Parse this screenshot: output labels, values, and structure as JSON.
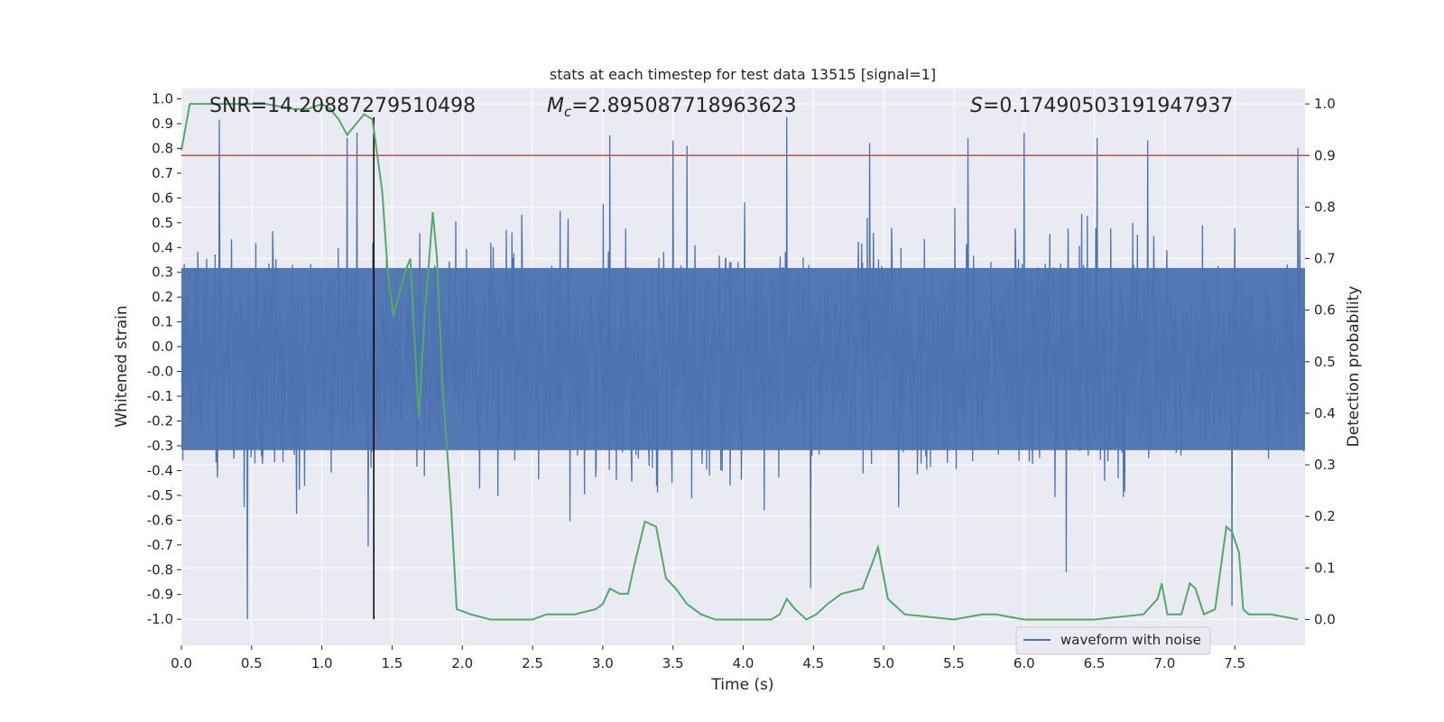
{
  "chart_data": {
    "type": "line",
    "title": "stats at each timestep for test data 13515 [signal=1]",
    "xlabel": "Time (s)",
    "ylabel": "Whitened strain",
    "y2label": "Detection probability",
    "xlim": [
      0.0,
      8.0
    ],
    "ylim": [
      -1.1,
      1.04
    ],
    "y2lim": [
      -0.05,
      1.03
    ],
    "xticks": [
      "0.0",
      "0.5",
      "1.0",
      "1.5",
      "2.0",
      "2.5",
      "3.0",
      "3.5",
      "4.0",
      "4.5",
      "5.0",
      "5.5",
      "6.0",
      "6.5",
      "7.0",
      "7.5"
    ],
    "yticks": [
      "1.0",
      "0.9",
      "0.8",
      "0.7",
      "0.6",
      "0.5",
      "0.4",
      "0.3",
      "0.2",
      "0.1",
      "0.0",
      "-0.0",
      "-0.1",
      "-0.2",
      "-0.3",
      "-0.4",
      "-0.5",
      "-0.6",
      "-0.7",
      "-0.8",
      "-0.9",
      "-1.0"
    ],
    "y2ticks": [
      "1.0",
      "0.9",
      "0.8",
      "0.7",
      "0.6",
      "0.5",
      "0.4",
      "0.3",
      "0.2",
      "0.1",
      "0.0"
    ],
    "annotations": {
      "snr": "SNR=14.20887279510498",
      "mc_symbol": "M",
      "mc_sub": "c",
      "mc_value": "=2.895087718963623",
      "s_symbol": "S",
      "s_value": "=0.17490503191947937"
    },
    "threshold": 0.9,
    "marker_time": 1.37,
    "series": [
      {
        "name": "waveform with noise",
        "color": "#4c72b0",
        "envelope": {
          "core": 0.35,
          "typical_extreme": 0.55,
          "max_positive": 0.93,
          "max_negative": -1.0
        },
        "peaks": [
          {
            "t": 0.27,
            "v": 0.92
          },
          {
            "t": 0.47,
            "v": -1.0
          },
          {
            "t": 1.18,
            "v": 0.85
          },
          {
            "t": 1.25,
            "v": 0.87
          },
          {
            "t": 1.33,
            "v": -0.72
          },
          {
            "t": 3.05,
            "v": 0.86
          },
          {
            "t": 3.5,
            "v": 0.84
          },
          {
            "t": 3.6,
            "v": 0.82
          },
          {
            "t": 4.31,
            "v": 0.93
          },
          {
            "t": 4.48,
            "v": -0.88
          },
          {
            "t": 4.9,
            "v": 0.83
          },
          {
            "t": 5.6,
            "v": 0.85
          },
          {
            "t": 6.0,
            "v": 0.87
          },
          {
            "t": 6.3,
            "v": -0.82
          },
          {
            "t": 6.52,
            "v": 0.85
          },
          {
            "t": 6.88,
            "v": 0.84
          },
          {
            "t": 7.48,
            "v": -0.95
          },
          {
            "t": 7.95,
            "v": 0.81
          }
        ]
      },
      {
        "name": "Detection probability",
        "color": "#55a868",
        "axis": "right",
        "x": [
          0.0,
          0.06,
          0.2,
          0.4,
          0.6,
          0.8,
          0.9,
          1.0,
          1.06,
          1.12,
          1.18,
          1.24,
          1.3,
          1.36,
          1.43,
          1.47,
          1.51,
          1.56,
          1.6,
          1.63,
          1.69,
          1.73,
          1.79,
          1.82,
          1.86,
          1.92,
          1.96,
          2.06,
          2.2,
          2.5,
          2.6,
          2.7,
          2.8,
          2.95,
          3.0,
          3.05,
          3.12,
          3.18,
          3.22,
          3.3,
          3.38,
          3.45,
          3.52,
          3.6,
          3.7,
          3.8,
          4.0,
          4.2,
          4.26,
          4.31,
          4.37,
          4.45,
          4.52,
          4.6,
          4.7,
          4.85,
          4.92,
          4.96,
          5.03,
          5.15,
          5.5,
          5.7,
          5.8,
          6.0,
          6.5,
          6.85,
          6.95,
          6.98,
          7.02,
          7.08,
          7.12,
          7.18,
          7.22,
          7.28,
          7.36,
          7.44,
          7.48,
          7.53,
          7.56,
          7.6,
          7.66,
          7.76,
          7.95
        ],
        "y": [
          0.91,
          1.0,
          1.0,
          1.0,
          1.0,
          0.99,
          0.99,
          1.0,
          0.99,
          0.97,
          0.94,
          0.96,
          0.98,
          0.97,
          0.83,
          0.67,
          0.59,
          0.64,
          0.68,
          0.7,
          0.39,
          0.58,
          0.79,
          0.7,
          0.45,
          0.22,
          0.02,
          0.01,
          0.0,
          0.0,
          0.01,
          0.01,
          0.01,
          0.02,
          0.03,
          0.06,
          0.05,
          0.05,
          0.1,
          0.19,
          0.18,
          0.08,
          0.06,
          0.03,
          0.01,
          0.0,
          0.0,
          0.0,
          0.01,
          0.04,
          0.02,
          0.0,
          0.01,
          0.03,
          0.05,
          0.06,
          0.11,
          0.14,
          0.04,
          0.01,
          0.0,
          0.01,
          0.01,
          0.0,
          0.0,
          0.01,
          0.04,
          0.07,
          0.01,
          0.01,
          0.01,
          0.07,
          0.06,
          0.01,
          0.02,
          0.18,
          0.17,
          0.13,
          0.02,
          0.01,
          0.01,
          0.01,
          0.0
        ]
      }
    ],
    "legend": {
      "label": "waveform with noise",
      "location": "lower right"
    }
  }
}
